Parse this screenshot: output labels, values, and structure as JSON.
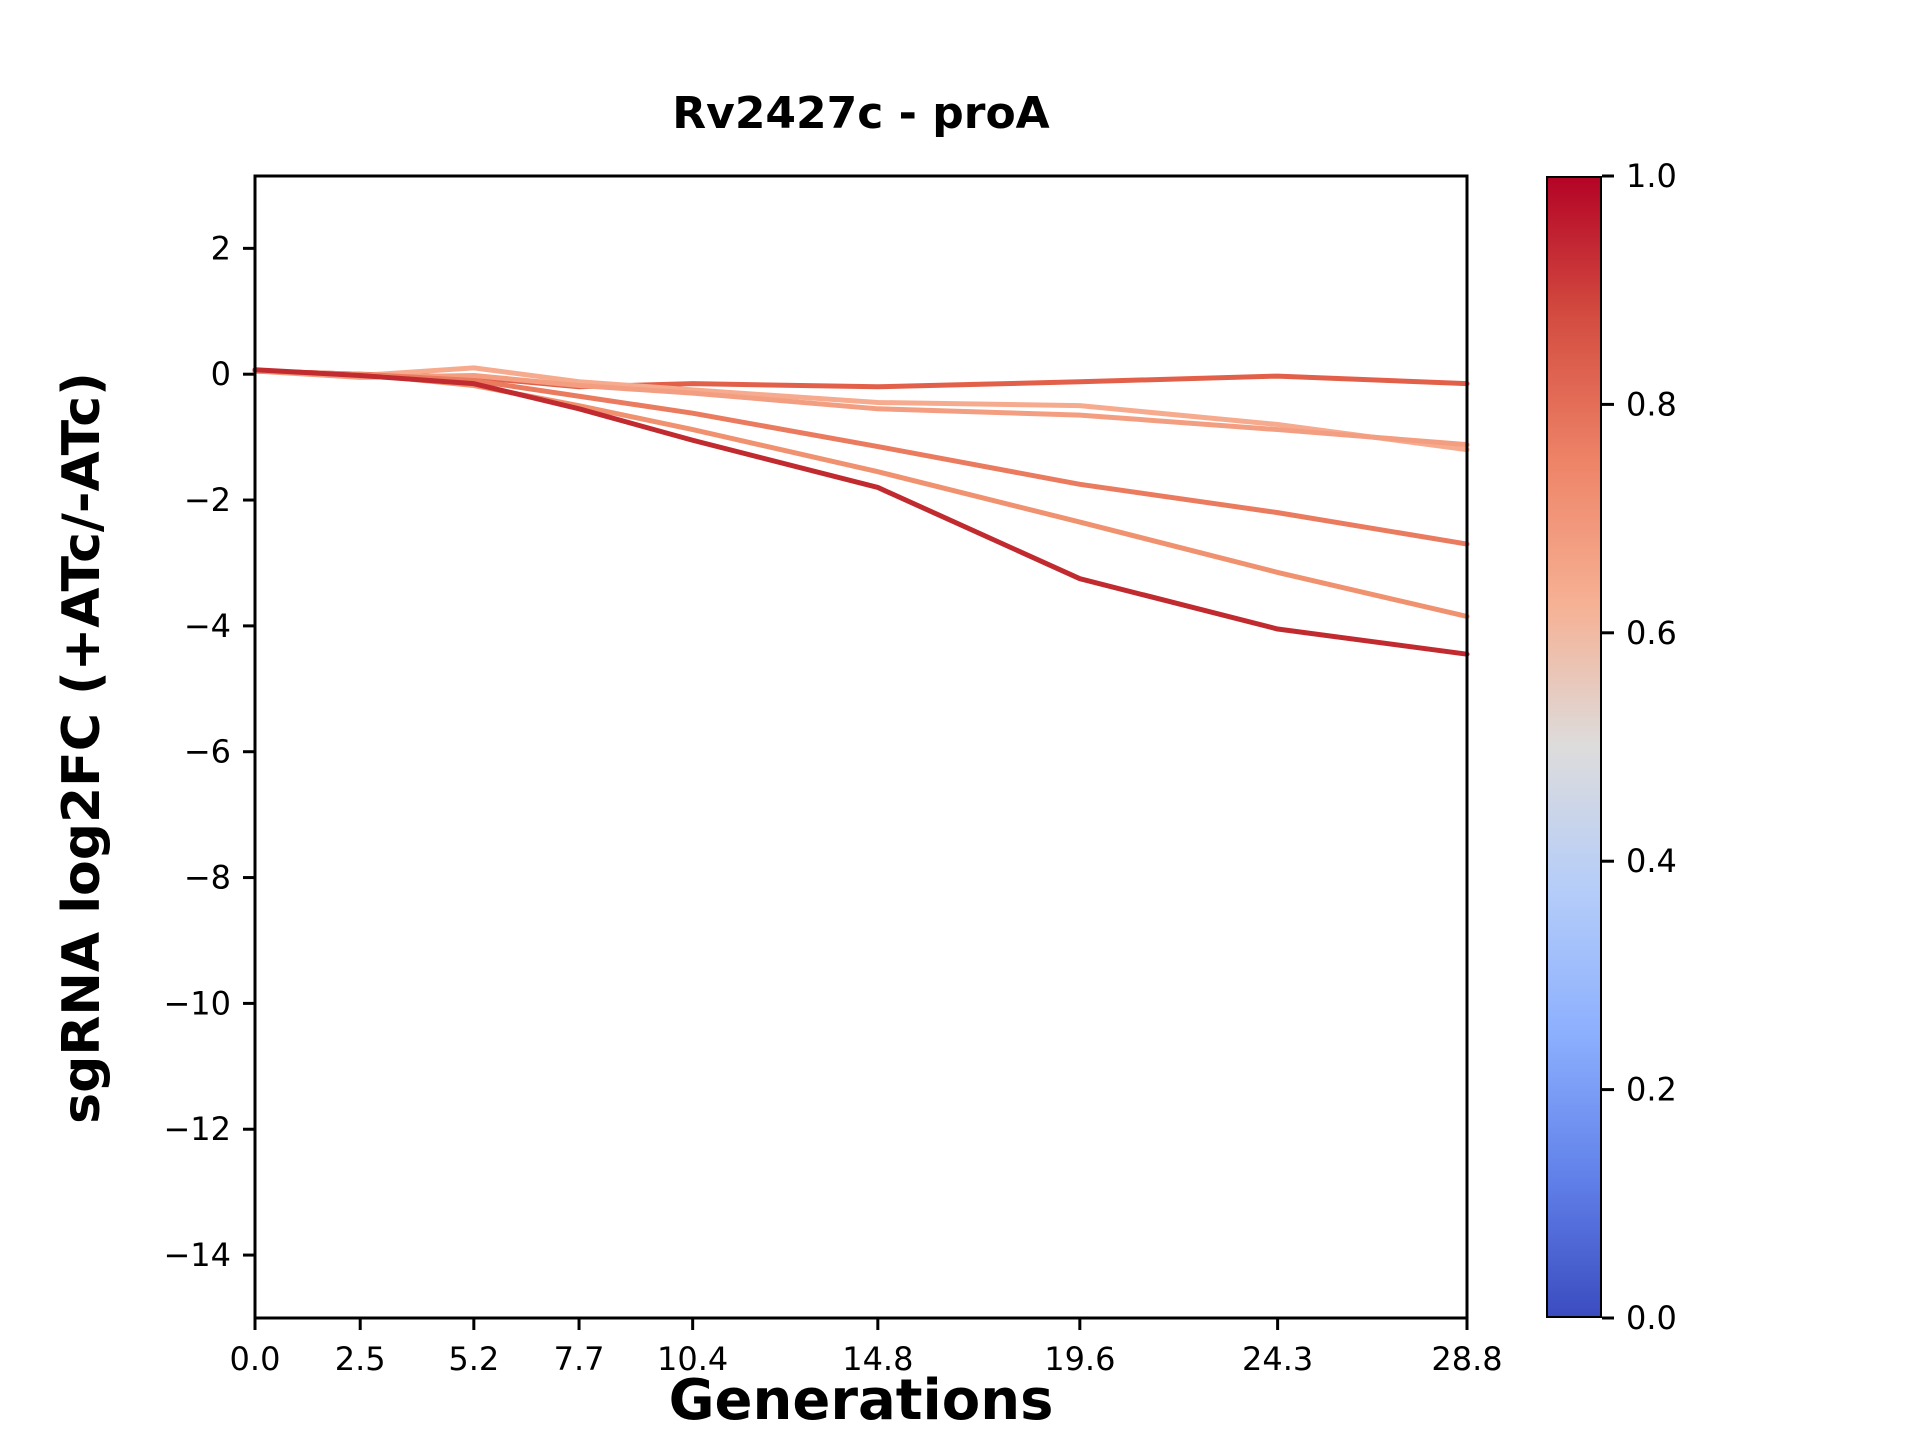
{
  "chart_data": {
    "type": "line",
    "title": "Rv2427c - proA",
    "xlabel": "Generations",
    "ylabel": "sgRNA log2FC (+ATc/-ATc)",
    "x": [
      0.0,
      2.5,
      5.2,
      7.7,
      10.4,
      14.8,
      19.6,
      24.3,
      28.8
    ],
    "xtick_labels": [
      "0.0",
      "2.5",
      "5.2",
      "7.7",
      "10.4",
      "14.8",
      "19.6",
      "24.3",
      "28.8"
    ],
    "xlim": [
      0,
      28.8
    ],
    "ylim": [
      -15.0,
      3.15
    ],
    "yticks": [
      2,
      0,
      -2,
      -4,
      -6,
      -8,
      -10,
      -12,
      -14
    ],
    "ytick_labels": [
      "2",
      "0",
      "−2",
      "−4",
      "−6",
      "−8",
      "−10",
      "−12",
      "−14"
    ],
    "grid": false,
    "series": [
      {
        "color": "#e2604a",
        "values": [
          0.05,
          0.0,
          -0.05,
          -0.2,
          -0.15,
          -0.2,
          -0.12,
          -0.03,
          -0.15
        ]
      },
      {
        "color": "#f7ab8e",
        "values": [
          0.05,
          -0.02,
          0.1,
          -0.12,
          -0.25,
          -0.45,
          -0.5,
          -0.8,
          -1.2
        ]
      },
      {
        "color": "#f49e81",
        "values": [
          0.05,
          -0.05,
          -0.02,
          -0.18,
          -0.3,
          -0.55,
          -0.65,
          -0.88,
          -1.12
        ]
      },
      {
        "color": "#ea7b5f",
        "values": [
          0.05,
          0.0,
          -0.1,
          -0.35,
          -0.62,
          -1.15,
          -1.75,
          -2.2,
          -2.7
        ]
      },
      {
        "color": "#f0926f",
        "values": [
          0.05,
          0.0,
          -0.18,
          -0.5,
          -0.88,
          -1.55,
          -2.35,
          -3.15,
          -3.85
        ]
      },
      {
        "color": "#c12b30",
        "values": [
          0.07,
          -0.02,
          -0.15,
          -0.55,
          -1.05,
          -1.8,
          -3.25,
          -4.05,
          -4.45
        ]
      }
    ],
    "colorbar": {
      "min": 0.0,
      "max": 1.0,
      "ticks": [
        "1.0",
        "0.8",
        "0.6",
        "0.4",
        "0.2",
        "0.0"
      ],
      "colormap": "coolwarm",
      "gradient_top_to_bottom": [
        {
          "pos": 0.0,
          "color": "#b40426"
        },
        {
          "pos": 0.125,
          "color": "#d44e41"
        },
        {
          "pos": 0.25,
          "color": "#ee8468"
        },
        {
          "pos": 0.375,
          "color": "#f6b194"
        },
        {
          "pos": 0.5,
          "color": "#dddcdc"
        },
        {
          "pos": 0.625,
          "color": "#b5cdf9"
        },
        {
          "pos": 0.75,
          "color": "#8db0fe"
        },
        {
          "pos": 0.875,
          "color": "#6282ea"
        },
        {
          "pos": 1.0,
          "color": "#3b4cc0"
        }
      ]
    }
  }
}
